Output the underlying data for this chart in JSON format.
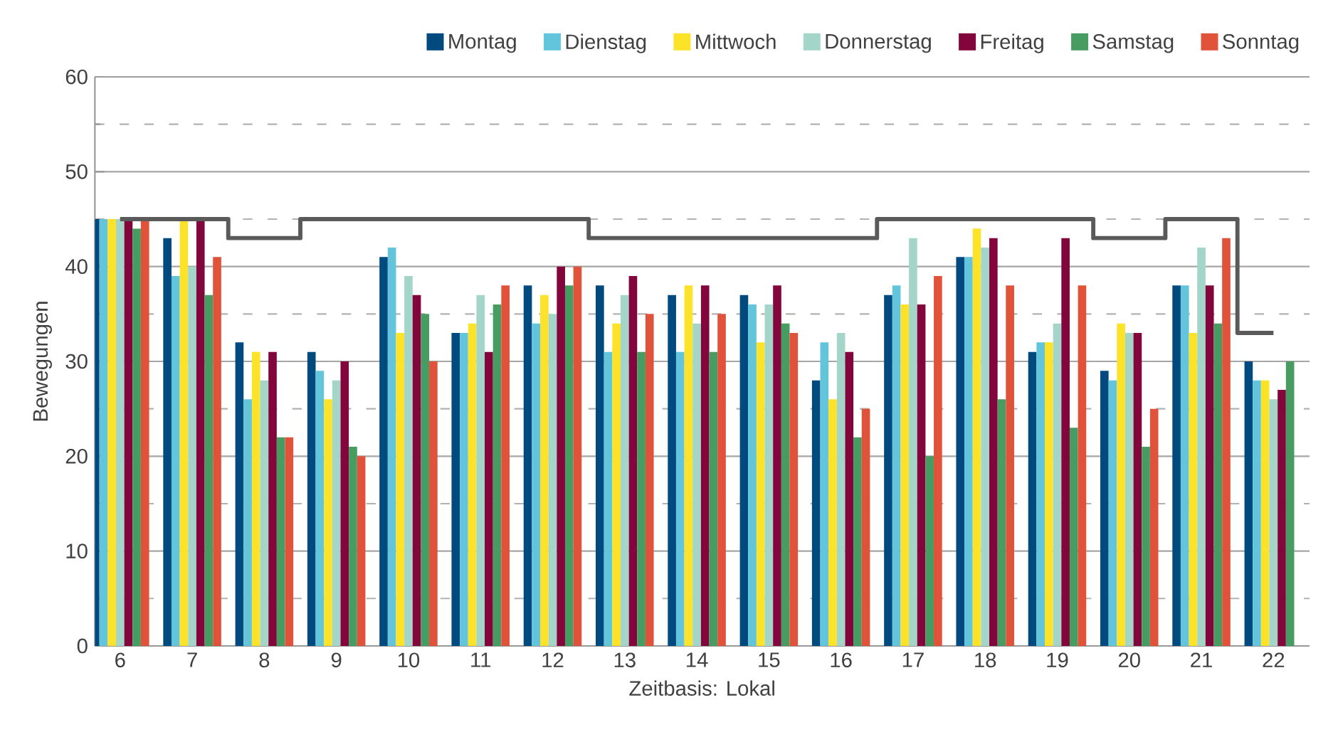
{
  "chart_data": {
    "type": "bar",
    "xlabel": "Zeitbasis: Lokal",
    "ylabel": "Bewegungen",
    "categories": [
      "6",
      "7",
      "8",
      "9",
      "10",
      "11",
      "12",
      "13",
      "14",
      "15",
      "16",
      "17",
      "18",
      "19",
      "20",
      "21",
      "22"
    ],
    "ylim": [
      0,
      60
    ],
    "yticks": [
      0,
      10,
      20,
      30,
      40,
      50,
      60
    ],
    "grid": "y",
    "legend": "top",
    "series": [
      {
        "name": "Montag",
        "color": "#004a80",
        "values": [
          45,
          43,
          32,
          31,
          41,
          33,
          38,
          38,
          37,
          37,
          28,
          37,
          41,
          31,
          29,
          38,
          30
        ]
      },
      {
        "name": "Dienstag",
        "color": "#62c5dc",
        "values": [
          45,
          39,
          26,
          29,
          42,
          33,
          34,
          31,
          31,
          36,
          32,
          38,
          41,
          32,
          28,
          38,
          28
        ]
      },
      {
        "name": "Mittwoch",
        "color": "#fde22a",
        "values": [
          45,
          45,
          31,
          26,
          33,
          34,
          37,
          34,
          38,
          32,
          26,
          36,
          44,
          32,
          34,
          33,
          28
        ]
      },
      {
        "name": "Donnerstag",
        "color": "#a3d6c8",
        "values": [
          45,
          40,
          28,
          28,
          39,
          37,
          35,
          37,
          34,
          36,
          33,
          43,
          42,
          34,
          33,
          42,
          26
        ]
      },
      {
        "name": "Freitag",
        "color": "#82053c",
        "values": [
          45,
          45,
          31,
          30,
          37,
          31,
          40,
          39,
          38,
          38,
          31,
          36,
          43,
          43,
          33,
          38,
          27
        ]
      },
      {
        "name": "Samstag",
        "color": "#479c62",
        "values": [
          44,
          37,
          22,
          21,
          35,
          36,
          38,
          31,
          31,
          34,
          22,
          20,
          26,
          23,
          21,
          34,
          30
        ]
      },
      {
        "name": "Sonntag",
        "color": "#e1523a",
        "values": [
          45,
          41,
          22,
          20,
          30,
          38,
          40,
          35,
          35,
          33,
          25,
          39,
          38,
          38,
          25,
          43,
          null
        ]
      },
      {
        "type": "step",
        "color": "#5a5a5a",
        "values": [
          45,
          45,
          43,
          45,
          45,
          45,
          45,
          43,
          43,
          43,
          43,
          45,
          45,
          45,
          43,
          45,
          33
        ]
      }
    ]
  }
}
